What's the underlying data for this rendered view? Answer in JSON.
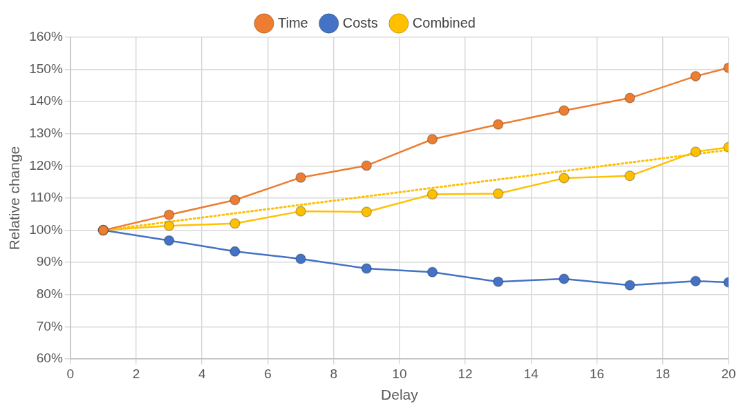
{
  "chart_data": {
    "type": "line",
    "xlabel": "Delay",
    "ylabel": "Relative change",
    "xlim": [
      0,
      20
    ],
    "xticks": [
      0,
      2,
      4,
      6,
      8,
      10,
      12,
      14,
      16,
      18,
      20
    ],
    "ylim": [
      60,
      160
    ],
    "yticks": [
      {
        "value": 60,
        "label": "60%"
      },
      {
        "value": 70,
        "label": "70%"
      },
      {
        "value": 80,
        "label": "80%"
      },
      {
        "value": 90,
        "label": "90%"
      },
      {
        "value": 100,
        "label": "100%"
      },
      {
        "value": 110,
        "label": "110%"
      },
      {
        "value": 120,
        "label": "120%"
      },
      {
        "value": 130,
        "label": "130%"
      },
      {
        "value": 140,
        "label": "140%"
      },
      {
        "value": 150,
        "label": "150%"
      },
      {
        "value": 160,
        "label": "160%"
      }
    ],
    "grid": true,
    "legend": "top",
    "marker": "circle",
    "line_style": "solid",
    "x": [
      1,
      3,
      5,
      7,
      9,
      11,
      13,
      15,
      17,
      19,
      20
    ],
    "series": [
      {
        "name": "Time",
        "color": "#ed7d31",
        "values": [
          100,
          104.8,
          109.4,
          116.4,
          120.1,
          128.3,
          132.9,
          137.2,
          141.1,
          147.9,
          150.5
        ]
      },
      {
        "name": "Costs",
        "color": "#4472c4",
        "values": [
          100,
          96.8,
          93.4,
          91.1,
          88.1,
          87.0,
          84.0,
          84.9,
          82.9,
          84.2,
          83.8
        ]
      },
      {
        "name": "Combined",
        "color": "#ffc000",
        "values": [
          100,
          101.4,
          102.1,
          105.9,
          105.7,
          111.2,
          111.4,
          116.2,
          116.9,
          124.4,
          125.8
        ]
      },
      {
        "type": "line",
        "color": "#ffc000",
        "x": [
          1,
          20
        ],
        "values": [
          100,
          125
        ],
        "marker": "none",
        "line_style": "dotted"
      }
    ]
  }
}
